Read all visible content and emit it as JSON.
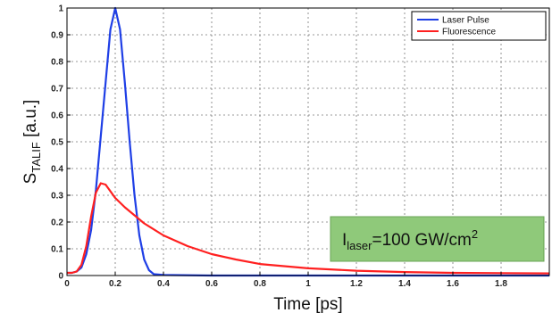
{
  "chart_data": {
    "type": "line",
    "xlabel": "Time [ps]",
    "ylabel": {
      "main": "S",
      "sub": "TALIF",
      "unit": " [a.u.]"
    },
    "xlim": [
      0,
      2.0
    ],
    "ylim": [
      0,
      1
    ],
    "x_ticks": [
      "0",
      "0.2",
      "0.4",
      "0.6",
      "0.8",
      "1",
      "1.2",
      "1.4",
      "1.6",
      "1.8"
    ],
    "y_ticks": [
      "0",
      "0.1",
      "0.2",
      "0.3",
      "0.4",
      "0.5",
      "0.6",
      "0.7",
      "0.8",
      "0.9",
      "1"
    ],
    "x_tick_values": [
      0,
      0.2,
      0.4,
      0.6,
      0.8,
      1.0,
      1.2,
      1.4,
      1.6,
      1.8
    ],
    "y_tick_values": [
      0,
      0.1,
      0.2,
      0.3,
      0.4,
      0.5,
      0.6,
      0.7,
      0.8,
      0.9,
      1.0
    ],
    "grid": true,
    "legend_position": "top-right",
    "series": [
      {
        "name": "Laser Pulse",
        "color": "#1f3fe6",
        "points": [
          [
            0,
            0.01
          ],
          [
            0.02,
            0.01
          ],
          [
            0.04,
            0.015
          ],
          [
            0.06,
            0.03
          ],
          [
            0.08,
            0.08
          ],
          [
            0.1,
            0.17
          ],
          [
            0.12,
            0.32
          ],
          [
            0.14,
            0.52
          ],
          [
            0.16,
            0.72
          ],
          [
            0.18,
            0.92
          ],
          [
            0.2,
            1.0
          ],
          [
            0.22,
            0.92
          ],
          [
            0.24,
            0.72
          ],
          [
            0.26,
            0.5
          ],
          [
            0.28,
            0.3
          ],
          [
            0.3,
            0.15
          ],
          [
            0.32,
            0.06
          ],
          [
            0.34,
            0.02
          ],
          [
            0.36,
            0.005
          ],
          [
            0.4,
            0.002
          ],
          [
            0.6,
            0.0
          ],
          [
            1.0,
            0.0
          ],
          [
            1.5,
            0.0
          ],
          [
            2.0,
            0.0
          ]
        ]
      },
      {
        "name": "Fluorescence",
        "color": "#ff2020",
        "points": [
          [
            0,
            0.01
          ],
          [
            0.02,
            0.01
          ],
          [
            0.04,
            0.015
          ],
          [
            0.06,
            0.04
          ],
          [
            0.08,
            0.11
          ],
          [
            0.1,
            0.22
          ],
          [
            0.12,
            0.31
          ],
          [
            0.14,
            0.345
          ],
          [
            0.16,
            0.34
          ],
          [
            0.18,
            0.315
          ],
          [
            0.2,
            0.29
          ],
          [
            0.24,
            0.255
          ],
          [
            0.28,
            0.225
          ],
          [
            0.32,
            0.195
          ],
          [
            0.4,
            0.15
          ],
          [
            0.5,
            0.11
          ],
          [
            0.6,
            0.08
          ],
          [
            0.7,
            0.06
          ],
          [
            0.8,
            0.043
          ],
          [
            1.0,
            0.027
          ],
          [
            1.2,
            0.018
          ],
          [
            1.4,
            0.013
          ],
          [
            1.6,
            0.01
          ],
          [
            1.8,
            0.009
          ],
          [
            2.0,
            0.008
          ]
        ]
      }
    ],
    "annotation": {
      "main": "I",
      "sub": "laser",
      "rest": "=100 GW/cm",
      "sup": "2"
    },
    "annotation_color": "#8fc97a"
  }
}
